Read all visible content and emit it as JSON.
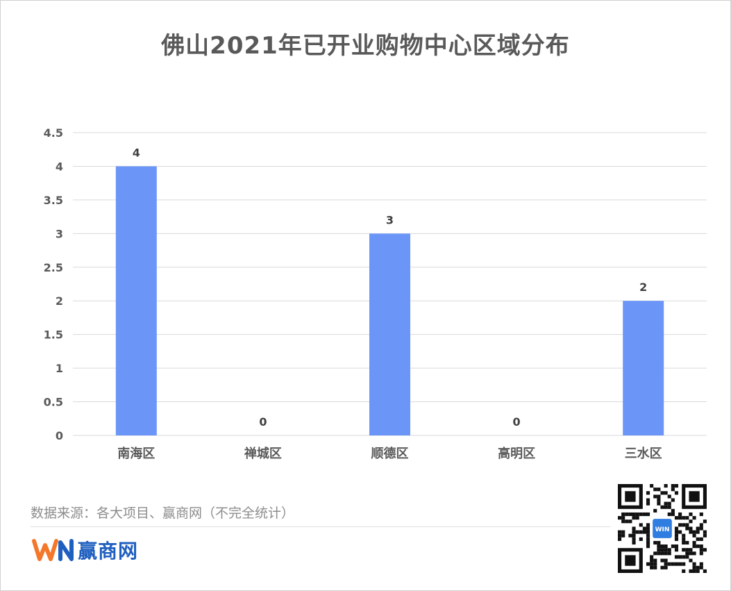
{
  "chart_data": {
    "type": "bar",
    "title": "佛山2021年已开业购物中心区域分布",
    "categories": [
      "南海区",
      "禅城区",
      "顺德区",
      "高明区",
      "三水区"
    ],
    "values": [
      4,
      0,
      3,
      0,
      2
    ],
    "data_labels": [
      "4",
      "0",
      "3",
      "0",
      "2"
    ],
    "ylim": [
      0,
      4.5
    ],
    "yticks": [
      "0",
      "0.5",
      "1",
      "1.5",
      "2",
      "2.5",
      "3",
      "3.5",
      "4",
      "4.5"
    ],
    "grid": true,
    "bar_color": "#6b96f8",
    "xlabel": "",
    "ylabel": ""
  },
  "footer": {
    "source": "数据来源：各大项目、赢商网（不完全统计）",
    "brand_mark": "WIN",
    "brand_name": "赢商网"
  },
  "qr_code": {
    "center_mark": "WIN"
  }
}
